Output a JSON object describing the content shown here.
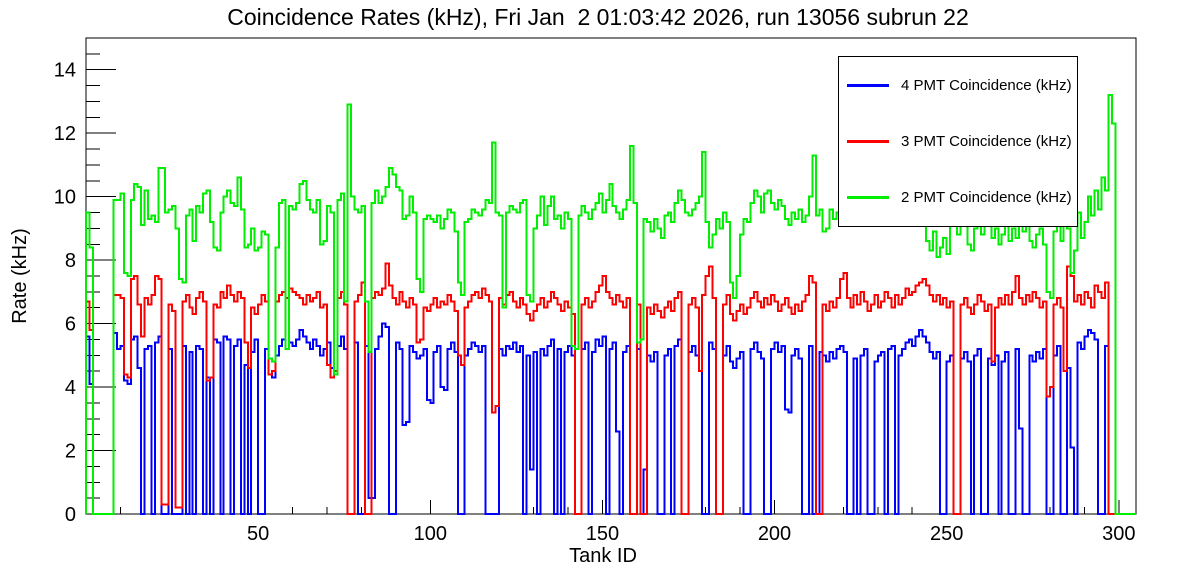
{
  "title": "Coincidence Rates (kHz), Fri Jan  2 01:03:42 2026, run 13056 subrun 22",
  "axes": {
    "x": {
      "label": "Tank ID",
      "min": 0,
      "max": 305,
      "major_ticks": [
        50,
        100,
        150,
        200,
        250,
        300
      ],
      "minor_tick_step": 10
    },
    "y": {
      "label": "Rate (kHz)",
      "min": 0,
      "max": 15,
      "major_ticks": [
        0,
        2,
        4,
        6,
        8,
        10,
        12,
        14
      ],
      "minor_tick_step": 0.5
    }
  },
  "legend": {
    "items": [
      {
        "label": "4 PMT Coincidence (kHz)",
        "color": "#0000ff"
      },
      {
        "label": "3 PMT Coincidence (kHz)",
        "color": "#ff0000"
      },
      {
        "label": "2 PMT Coincidence (kHz)",
        "color": "#00ee00"
      }
    ]
  },
  "chart_data": {
    "type": "line",
    "style": "step-histogram",
    "title": "Coincidence Rates (kHz), Fri Jan  2 01:03:42 2026, run 13056 subrun 22",
    "xlabel": "Tank ID",
    "ylabel": "Rate (kHz)",
    "xlim": [
      0,
      305
    ],
    "ylim": [
      0,
      15
    ],
    "grid": false,
    "legend_position": "top-right",
    "x_start": 0,
    "bin_width": 1,
    "series": [
      {
        "id": "4pmt",
        "name": "4 PMT Coincidence (kHz)",
        "color": "#0000ff",
        "values": [
          5.6,
          4.1,
          0,
          0,
          0,
          0,
          0,
          0,
          5.7,
          5.2,
          5.3,
          4.2,
          4.1,
          5.5,
          5.6,
          4.6,
          0,
          5.2,
          5.3,
          0,
          5.4,
          5.6,
          0,
          0,
          5.2,
          0,
          0,
          0,
          5.3,
          0,
          5.1,
          0,
          5.3,
          5.2,
          0,
          4.3,
          0,
          5.5,
          5.4,
          0,
          5.6,
          5.5,
          0,
          5.3,
          5.5,
          0,
          4.7,
          0,
          5.1,
          5.5,
          0,
          0,
          5.2,
          4.4,
          4.3,
          5.0,
          5.3,
          5.5,
          5.2,
          5.4,
          5.3,
          5.5,
          5.8,
          5.6,
          5.4,
          5.2,
          5.5,
          5.3,
          5.0,
          5.2,
          5.4,
          4.6,
          4.5,
          5.3,
          5.6,
          5.2,
          0,
          0,
          5.4,
          0,
          0,
          5.3,
          0.5,
          0.5,
          5.2,
          5.6,
          6.0,
          5.9,
          0,
          0,
          5.4,
          5.2,
          2.8,
          2.9,
          5.3,
          5.1,
          4.9,
          5.0,
          5.2,
          3.6,
          3.5,
          5.1,
          5.3,
          4.0,
          3.9,
          5.2,
          5.4,
          5.1,
          0,
          0,
          5.0,
          5.2,
          5.4,
          5.3,
          5.1,
          5.3,
          0,
          0,
          0,
          0,
          5.2,
          5.0,
          5.3,
          5.2,
          5.4,
          5.1,
          5.3,
          0,
          5.0,
          1.4,
          5.1,
          0,
          5.2,
          5.0,
          5.3,
          5.5,
          0,
          5.2,
          0,
          5.1,
          5.3,
          5.0,
          0,
          0,
          5.2,
          5.4,
          0,
          5.1,
          5.5,
          5.3,
          5.6,
          0,
          5.2,
          5.4,
          2.6,
          0,
          5.1,
          5.3,
          0,
          0,
          5.2,
          0,
          1.4,
          5.0,
          4.8,
          5.1,
          0,
          0,
          5.0,
          5.2,
          0,
          5.3,
          5.5,
          0,
          0,
          5.1,
          5.3,
          5.0,
          4.5,
          0,
          0,
          5.4,
          5.2,
          0,
          0,
          5.0,
          5.3,
          4.8,
          4.6,
          4.9,
          5.1,
          0,
          0,
          5.2,
          5.4,
          5.1,
          4.9,
          0,
          0,
          5.2,
          5.4,
          5.1,
          5.3,
          3.3,
          3.2,
          5.0,
          5.2,
          4.9,
          0,
          0,
          5.3,
          0,
          0,
          5.1,
          5.0,
          4.8,
          5.1,
          4.9,
          5.2,
          5.3,
          5.1,
          0,
          0,
          4.9,
          0,
          5.0,
          5.2,
          0,
          0,
          4.8,
          5.0,
          5.1,
          0,
          5.2,
          5.3,
          0,
          5.0,
          5.2,
          5.4,
          5.5,
          5.3,
          5.6,
          5.8,
          5.6,
          5.4,
          5.1,
          4.9,
          5.1,
          0,
          0,
          4.8,
          5.0,
          0,
          0,
          4.9,
          5.1,
          4.8,
          0,
          5.0,
          5.2,
          0,
          0,
          4.9,
          4.7,
          5.0,
          0,
          4.8,
          5.1,
          0,
          0,
          5.2,
          2.7,
          0,
          0,
          5.0,
          4.8,
          5.1,
          4.9,
          5.2,
          0,
          0,
          5.0,
          5.3,
          0,
          0,
          4.6,
          2.1,
          0,
          5.4,
          5.2,
          5.6,
          5.8,
          5.7,
          5.5,
          0,
          0,
          5.3,
          0,
          0,
          0,
          0,
          0,
          0,
          0,
          0
        ]
      },
      {
        "id": "3pmt",
        "name": "3 PMT Coincidence (kHz)",
        "color": "#ff0000",
        "values": [
          6.7,
          5.8,
          0,
          0,
          0,
          0,
          0,
          0,
          6.9,
          6.9,
          6.8,
          4.4,
          4.3,
          7.4,
          7.5,
          6.6,
          5.6,
          6.8,
          6.6,
          6.9,
          7.5,
          7.4,
          0.3,
          0.3,
          6.6,
          6.4,
          0.2,
          0.2,
          6.7,
          6.9,
          6.5,
          6.3,
          6.8,
          7.0,
          6.7,
          4.2,
          4.3,
          6.6,
          6.5,
          7.0,
          6.8,
          7.2,
          6.9,
          6.7,
          7.0,
          6.8,
          5.4,
          4.6,
          6.5,
          6.3,
          6.6,
          6.9,
          6.7,
          4.4,
          4.5,
          6.7,
          6.9,
          7.0,
          6.8,
          7.1,
          7.0,
          6.9,
          6.8,
          6.6,
          6.9,
          6.7,
          6.8,
          7.0,
          6.5,
          6.6,
          4.7,
          4.3,
          4.5,
          6.8,
          7.0,
          6.6,
          0,
          0,
          6.7,
          6.9,
          7.3,
          0,
          0,
          6.8,
          7.0,
          6.9,
          7.1,
          7.9,
          7.2,
          6.8,
          6.6,
          7.0,
          6.7,
          6.5,
          6.8,
          6.6,
          5.4,
          5.5,
          6.5,
          6.4,
          6.6,
          6.8,
          6.5,
          6.7,
          6.6,
          6.9,
          6.7,
          6.4,
          5.0,
          4.7,
          6.5,
          6.7,
          6.9,
          7.0,
          6.8,
          7.1,
          6.9,
          6.7,
          3.2,
          3.4,
          6.8,
          6.6,
          6.9,
          7.0,
          6.7,
          6.5,
          6.8,
          6.6,
          6.3,
          6.1,
          6.4,
          6.6,
          6.8,
          6.5,
          6.7,
          7.0,
          6.8,
          6.6,
          6.4,
          6.7,
          6.5,
          6.3,
          0,
          0,
          6.6,
          6.8,
          6.5,
          6.7,
          7.0,
          7.2,
          7.5,
          7.0,
          6.8,
          6.6,
          6.9,
          6.7,
          6.5,
          6.8,
          0,
          0,
          6.6,
          0,
          0,
          6.5,
          6.3,
          6.6,
          6.4,
          6.2,
          6.5,
          6.7,
          6.4,
          6.8,
          7.0,
          0,
          0,
          6.6,
          6.8,
          6.5,
          4.5,
          6.9,
          7.5,
          7.8,
          6.8,
          0,
          0,
          6.6,
          6.9,
          6.3,
          6.1,
          6.4,
          6.6,
          6.3,
          6.5,
          6.8,
          7.0,
          6.7,
          6.5,
          6.8,
          6.6,
          6.9,
          6.7,
          6.4,
          6.6,
          6.8,
          6.5,
          6.3,
          6.6,
          6.4,
          6.7,
          6.9,
          7.5,
          7.3,
          0,
          0,
          6.6,
          6.4,
          6.7,
          6.5,
          6.8,
          7.4,
          7.6,
          6.8,
          6.5,
          6.9,
          6.6,
          7.0,
          6.7,
          6.4,
          6.6,
          6.9,
          6.5,
          6.7,
          7.0,
          6.8,
          6.5,
          6.9,
          6.6,
          6.8,
          7.1,
          6.9,
          7.0,
          7.2,
          7.3,
          7.4,
          7.2,
          6.9,
          6.7,
          6.9,
          6.6,
          6.8,
          6.5,
          6.7,
          0,
          0,
          6.6,
          6.8,
          6.5,
          6.3,
          6.6,
          6.9,
          6.7,
          6.4,
          6.6,
          4.8,
          6.5,
          6.8,
          6.6,
          6.9,
          6.6,
          7.0,
          7.5,
          6.8,
          6.6,
          6.9,
          6.7,
          7.0,
          6.8,
          6.5,
          6.7,
          3.7,
          4.0,
          6.6,
          6.8,
          6.5,
          4.5,
          7.8,
          7.5,
          6.7,
          6.9,
          6.6,
          7.0,
          6.8,
          6.5,
          7.2,
          7.0,
          6.8,
          7.3,
          0,
          0,
          0,
          0,
          0,
          0,
          0,
          0
        ]
      },
      {
        "id": "2pmt",
        "name": "2 PMT Coincidence (kHz)",
        "color": "#00ee00",
        "values": [
          9.5,
          8.4,
          0,
          0,
          0,
          0,
          0,
          0,
          9.9,
          9.9,
          10.1,
          7.6,
          7.5,
          9.9,
          10.4,
          10.3,
          9.1,
          10.2,
          9.3,
          9.4,
          9.2,
          10.9,
          10.9,
          9.5,
          9.6,
          9.7,
          9.0,
          7.4,
          7.3,
          9.4,
          9.6,
          8.6,
          9.7,
          9.5,
          10.1,
          10.2,
          9.2,
          8.4,
          8.3,
          9.5,
          10.0,
          10.2,
          9.8,
          9.7,
          10.6,
          9.6,
          8.4,
          8.5,
          9.0,
          8.3,
          8.4,
          8.9,
          8.8,
          4.9,
          4.8,
          8.4,
          9.8,
          9.9,
          5.2,
          9.7,
          9.6,
          9.8,
          10.4,
          10.5,
          9.9,
          9.6,
          9.5,
          9.9,
          8.5,
          8.6,
          9.7,
          9.5,
          4.4,
          9.9,
          10.1,
          6.7,
          12.9,
          10.0,
          9.6,
          9.5,
          9.7,
          6.7,
          5.1,
          9.8,
          10.2,
          9.8,
          10.0,
          10.3,
          10.9,
          10.7,
          10.3,
          10.2,
          9.3,
          9.4,
          10.0,
          9.5,
          7.4,
          7.0,
          9.3,
          9.4,
          9.3,
          9.2,
          9.4,
          9.0,
          9.3,
          9.6,
          9.5,
          8.9,
          7.3,
          6.9,
          9.2,
          9.3,
          9.6,
          9.5,
          9.4,
          9.6,
          9.9,
          9.8,
          11.7,
          9.5,
          9.4,
          6.5,
          9.5,
          9.7,
          9.6,
          9.5,
          9.8,
          9.9,
          6.9,
          6.7,
          9.0,
          9.4,
          10.0,
          9.1,
          9.7,
          10.0,
          9.3,
          9.4,
          9.0,
          9.5,
          9.3,
          5.3,
          5.2,
          9.4,
          9.7,
          9.5,
          9.3,
          9.6,
          9.8,
          10.1,
          9.5,
          9.9,
          10.4,
          9.7,
          9.5,
          9.3,
          9.6,
          9.9,
          11.6,
          9.8,
          5.4,
          5.5,
          9.3,
          9.2,
          8.9,
          9.3,
          9.0,
          8.7,
          9.4,
          9.5,
          9.2,
          9.8,
          10.2,
          9.9,
          9.5,
          9.4,
          9.6,
          9.8,
          10.0,
          11.4,
          9.2,
          8.4,
          8.8,
          9.3,
          9.0,
          9.5,
          9.2,
          7.3,
          6.8,
          7.5,
          8.8,
          9.3,
          9.2,
          9.8,
          10.2,
          10.0,
          9.5,
          10.1,
          10.2,
          9.8,
          9.6,
          9.9,
          9.7,
          9.3,
          9.1,
          9.5,
          9.3,
          9.6,
          9.2,
          9.4,
          10.0,
          11.3,
          9.4,
          9.6,
          8.9,
          9.0,
          9.6,
          9.3,
          9.5,
          9.4,
          10.0,
          9.7,
          9.4,
          9.6,
          9.8,
          9.5,
          9.3,
          10.2,
          9.7,
          9.4,
          9.8,
          10.0,
          9.6,
          9.3,
          9.8,
          9.5,
          9.7,
          9.4,
          9.9,
          10.1,
          9.6,
          9.3,
          9.8,
          9.5,
          8.6,
          8.3,
          8.9,
          8.1,
          8.4,
          8.7,
          8.2,
          9.4,
          9.1,
          8.8,
          9.3,
          9.5,
          8.5,
          8.3,
          9.0,
          9.2,
          8.8,
          9.4,
          9.1,
          8.7,
          9.0,
          8.5,
          8.8,
          9.2,
          8.6,
          9.0,
          8.7,
          9.3,
          8.9,
          9.1,
          8.6,
          8.4,
          8.8,
          9.0,
          8.5,
          7.0,
          6.8,
          8.9,
          9.2,
          8.6,
          9.4,
          9.0,
          7.6,
          8.3,
          9.5,
          8.7,
          9.2,
          10.0,
          9.4,
          10.2,
          9.6,
          10.6,
          10.2,
          13.2,
          12.3,
          0,
          0,
          0,
          0,
          0,
          0
        ]
      }
    ]
  }
}
